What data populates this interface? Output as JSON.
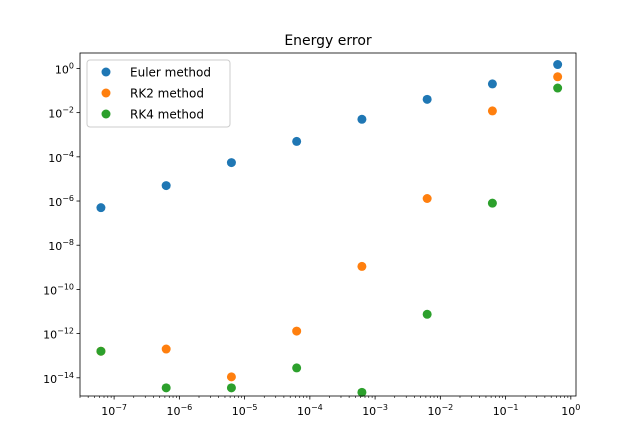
{
  "chart_data": {
    "type": "scatter",
    "title": "Energy error",
    "xlabel": "",
    "ylabel": "",
    "xscale": "log",
    "yscale": "log",
    "xlim": [
      3e-08,
      1.2
    ],
    "ylim": [
      1.5e-15,
      5
    ],
    "x": [
      6.28e-08,
      6.28e-07,
      6.28e-06,
      6.28e-05,
      0.000628,
      0.00628,
      0.0628,
      0.628
    ],
    "x_ticks": [
      {
        "base": "10",
        "exp": "−7",
        "value": 1e-07
      },
      {
        "base": "10",
        "exp": "−6",
        "value": 1e-06
      },
      {
        "base": "10",
        "exp": "−5",
        "value": 1e-05
      },
      {
        "base": "10",
        "exp": "−4",
        "value": 0.0001
      },
      {
        "base": "10",
        "exp": "−3",
        "value": 0.001
      },
      {
        "base": "10",
        "exp": "−2",
        "value": 0.01
      },
      {
        "base": "10",
        "exp": "−1",
        "value": 0.1
      },
      {
        "base": "10",
        "exp": "0",
        "value": 1
      }
    ],
    "y_ticks": [
      {
        "base": "10",
        "exp": "0",
        "value": 1
      },
      {
        "base": "10",
        "exp": "−2",
        "value": 0.01
      },
      {
        "base": "10",
        "exp": "−4",
        "value": 0.0001
      },
      {
        "base": "10",
        "exp": "−6",
        "value": 1e-06
      },
      {
        "base": "10",
        "exp": "−8",
        "value": 1e-08
      },
      {
        "base": "10",
        "exp": "−10",
        "value": 1e-10
      },
      {
        "base": "10",
        "exp": "−12",
        "value": 1e-12
      },
      {
        "base": "10",
        "exp": "−14",
        "value": 1e-14
      }
    ],
    "series": [
      {
        "name": "Euler method",
        "color": "#1f77b4",
        "values": [
          5e-07,
          5e-06,
          5.5e-05,
          0.0005,
          0.005,
          0.04,
          0.2,
          1.5
        ]
      },
      {
        "name": "RK2 method",
        "color": "#ff7f0e",
        "values": [
          1.6e-13,
          2e-13,
          1.1e-14,
          1.3e-12,
          1.1e-09,
          1.3e-06,
          0.012,
          0.42
        ]
      },
      {
        "name": "RK4 method",
        "color": "#2ca02c",
        "values": [
          1.6e-13,
          3.5e-15,
          3.5e-15,
          2.8e-14,
          2.2e-15,
          7.5e-12,
          8e-07,
          0.13
        ]
      }
    ],
    "grid": false,
    "legend": "upper-left"
  }
}
